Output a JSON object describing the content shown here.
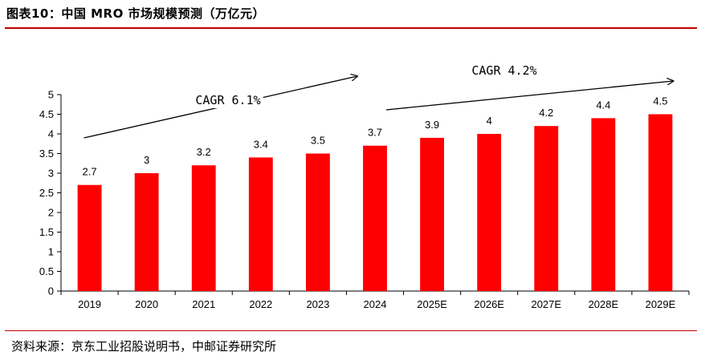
{
  "header": {
    "title": "图表10：中国 MRO 市场规模预测（万亿元）"
  },
  "footer": {
    "source": "资料来源：京东工业招股说明书，中邮证券研究所"
  },
  "colors": {
    "bar": "#ff0000",
    "rule": "#c00000",
    "axis": "#000000"
  },
  "chart_data": {
    "type": "bar",
    "categories": [
      "2019",
      "2020",
      "2021",
      "2022",
      "2023",
      "2024",
      "2025E",
      "2026E",
      "2027E",
      "2028E",
      "2029E"
    ],
    "values": [
      2.7,
      3,
      3.2,
      3.4,
      3.5,
      3.7,
      3.9,
      4,
      4.2,
      4.4,
      4.5
    ],
    "value_labels": [
      "2.7",
      "3",
      "3.2",
      "3.4",
      "3.5",
      "3.7",
      "3.9",
      "4",
      "4.2",
      "4.4",
      "4.5"
    ],
    "y_ticks": [
      "0",
      "0.5",
      "1",
      "1.5",
      "2",
      "2.5",
      "3",
      "3.5",
      "4",
      "4.5",
      "5"
    ],
    "ylim": [
      0,
      5
    ],
    "grid": false,
    "legend": "none",
    "annotations": [
      {
        "text": "CAGR 6.1%",
        "from_category": "2019",
        "to_category": "2024"
      },
      {
        "text": "CAGR 4.2%",
        "from_category": "2024",
        "to_category": "2029E"
      }
    ]
  }
}
